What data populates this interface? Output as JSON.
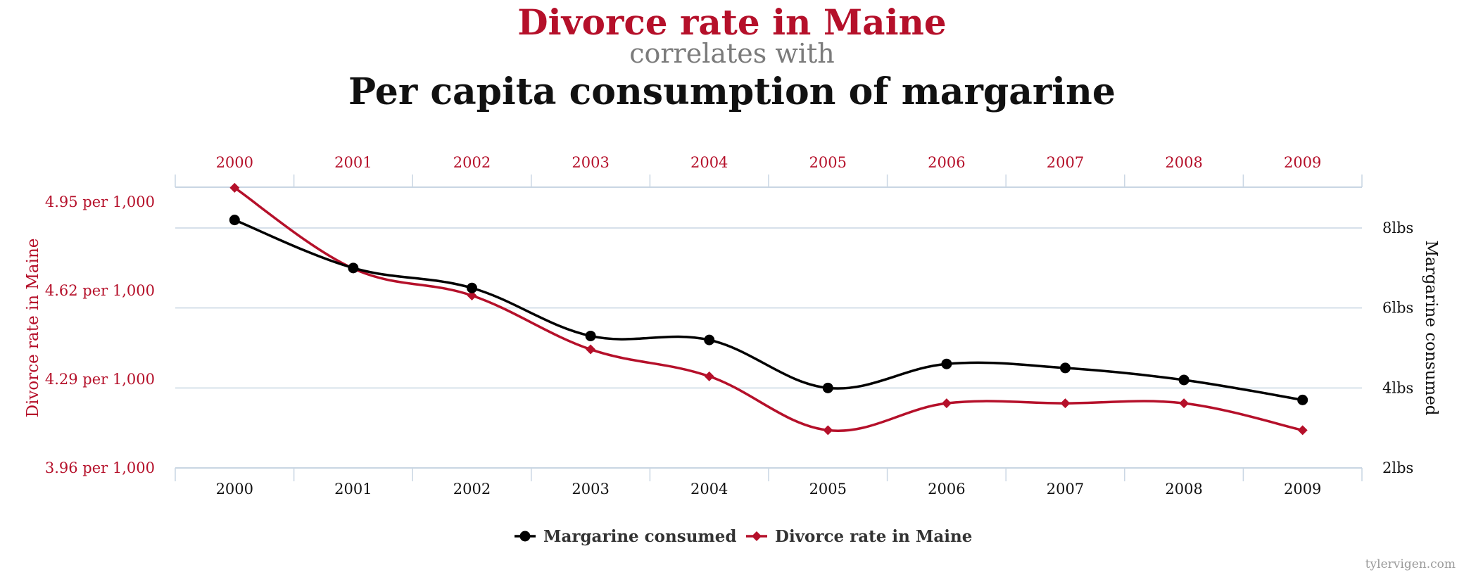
{
  "titles": {
    "line1": "Divorce rate in Maine",
    "line2": "correlates with",
    "line3": "Per capita consumption of margarine"
  },
  "credit": "tylervigen.com",
  "colors": {
    "red": "#b5102a",
    "black": "#000000",
    "grid": "#c9d6e3",
    "gray": "#7b7b7b"
  },
  "chart_data": {
    "type": "line",
    "categories": [
      "2000",
      "2001",
      "2002",
      "2003",
      "2004",
      "2005",
      "2006",
      "2007",
      "2008",
      "2009"
    ],
    "series": [
      {
        "name": "Margarine consumed",
        "axis": "right",
        "marker": "circle",
        "color": "#000000",
        "values": [
          8.2,
          7.0,
          6.5,
          5.3,
          5.2,
          4.0,
          4.6,
          4.5,
          4.2,
          3.7
        ]
      },
      {
        "name": "Divorce rate in Maine",
        "axis": "left",
        "marker": "diamond",
        "color": "#b5102a",
        "values": [
          5.0,
          4.7,
          4.6,
          4.4,
          4.3,
          4.1,
          4.2,
          4.2,
          4.2,
          4.1
        ]
      }
    ],
    "y_left": {
      "label": "Divorce rate in Maine",
      "ticks": [
        "4.95 per 1,000",
        "4.62 per 1,000",
        "4.29 per 1,000",
        "3.96 per 1,000"
      ],
      "range": [
        3.96,
        5.06
      ]
    },
    "y_right": {
      "label": "Margarine consumed",
      "ticks": [
        "8lbs",
        "6lbs",
        "4lbs",
        "2lbs"
      ],
      "range": [
        2,
        9
      ]
    },
    "grid": true,
    "legend": "bottom-center"
  }
}
